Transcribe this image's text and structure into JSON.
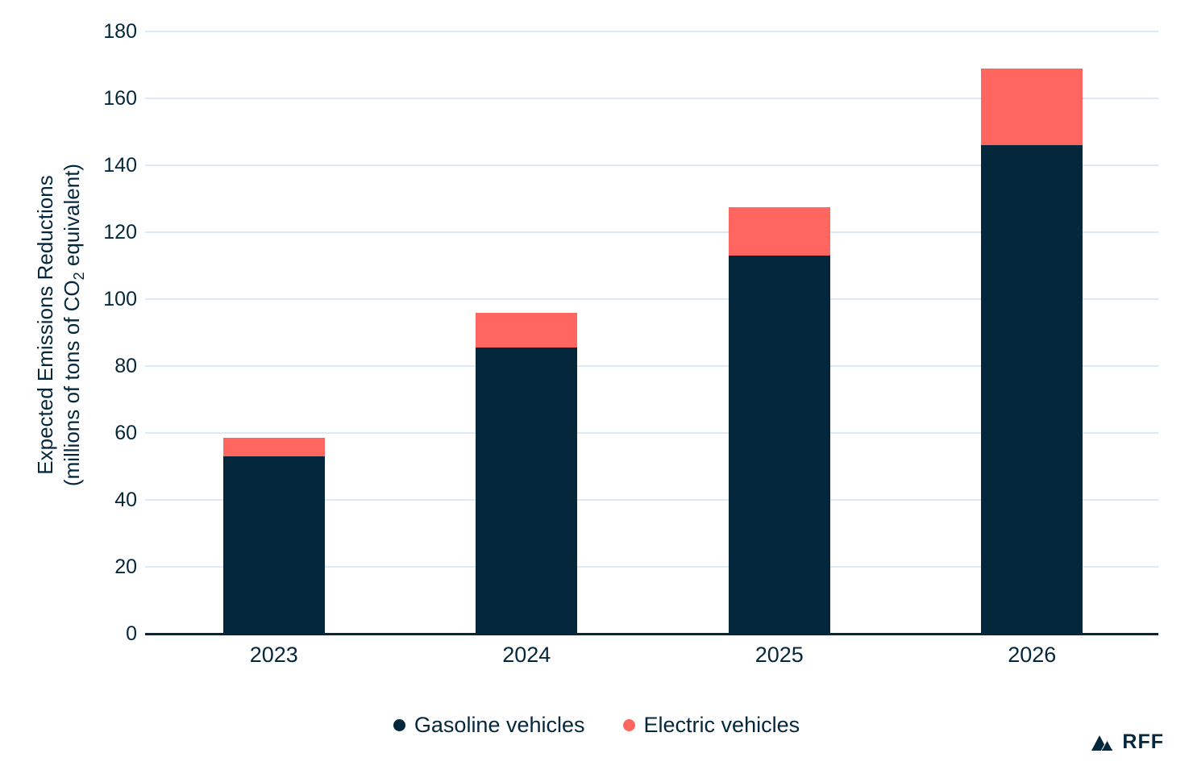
{
  "chart_data": {
    "type": "bar",
    "stacked": true,
    "categories": [
      "2023",
      "2024",
      "2025",
      "2026"
    ],
    "series": [
      {
        "name": "Gasoline vehicles",
        "color": "#04273B",
        "values": [
          53,
          85.5,
          113,
          146
        ]
      },
      {
        "name": "Electric vehicles",
        "color": "#FF665F",
        "values": [
          5.5,
          10.5,
          14.5,
          23
        ]
      }
    ],
    "stack_totals": [
      58.5,
      96,
      127.5,
      169
    ],
    "title": "",
    "xlabel": "",
    "ylabel_line1": "Expected Emissions Reductions",
    "ylabel_line2_pre": "(millions of tons of CO",
    "ylabel_line2_sub": "2",
    "ylabel_line2_post": " equivalent)",
    "ylim": [
      0,
      180
    ],
    "yticks": [
      0,
      20,
      40,
      60,
      80,
      100,
      120,
      140,
      160,
      180
    ],
    "grid": "horizontal-only",
    "legend_position": "bottom-center"
  },
  "colors": {
    "gasoline_navy": "#04273B",
    "electric_coral": "#FF665F",
    "gridline": "#DCE9F6",
    "axis_line": "#04273B",
    "background": "#FFFFFF"
  },
  "branding": {
    "logo_text": "RFF"
  }
}
